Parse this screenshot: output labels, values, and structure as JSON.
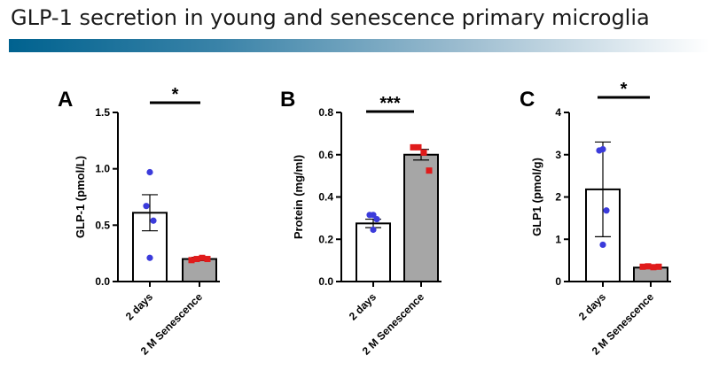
{
  "page_title": "GLP-1 secretion in young and senescence primary microglia",
  "colors": {
    "bar_young": "#ffffff",
    "bar_senescence": "#a6a6a6",
    "dot_young": "#3b3bdb",
    "dot_senescence": "#e01b1b",
    "title_bar_start": "#00628f"
  },
  "chart_data": [
    {
      "type": "bar",
      "panel_label": "A",
      "ylabel": "GLP-1 (pmol/L)",
      "ylim": [
        0,
        1.5
      ],
      "yticks": [
        "0.0",
        "0.5",
        "1.0",
        "1.5"
      ],
      "categories": [
        "2 days",
        "2 M Senescence"
      ],
      "values": [
        0.61,
        0.2
      ],
      "errors": [
        0.16,
        0.015
      ],
      "points": [
        [
          0.97,
          0.67,
          0.54,
          0.21
        ],
        [
          0.19,
          0.2,
          0.21,
          0.2
        ]
      ],
      "significance": "*"
    },
    {
      "type": "bar",
      "panel_label": "B",
      "ylabel": "Protein (mg/ml)",
      "ylim": [
        0,
        0.8
      ],
      "yticks": [
        "0.0",
        "0.2",
        "0.4",
        "0.6",
        "0.8"
      ],
      "categories": [
        "2 days",
        "2 M Senescence"
      ],
      "values": [
        0.275,
        0.6
      ],
      "errors": [
        0.02,
        0.025
      ],
      "points": [
        [
          0.315,
          0.315,
          0.295,
          0.245
        ],
        [
          0.635,
          0.635,
          0.61,
          0.525
        ]
      ],
      "significance": "***"
    },
    {
      "type": "bar",
      "panel_label": "C",
      "ylabel": "GLP1 (pmol/g)",
      "ylim": [
        0,
        4
      ],
      "yticks": [
        "0",
        "1",
        "2",
        "3",
        "4"
      ],
      "categories": [
        "2 days",
        "2 M Senescence"
      ],
      "values": [
        2.18,
        0.33
      ],
      "errors": [
        1.12,
        0.02
      ],
      "points": [
        [
          3.13,
          3.1,
          1.68,
          0.87
        ],
        [
          0.35,
          0.36,
          0.34,
          0.35
        ]
      ],
      "significance": "*"
    }
  ]
}
